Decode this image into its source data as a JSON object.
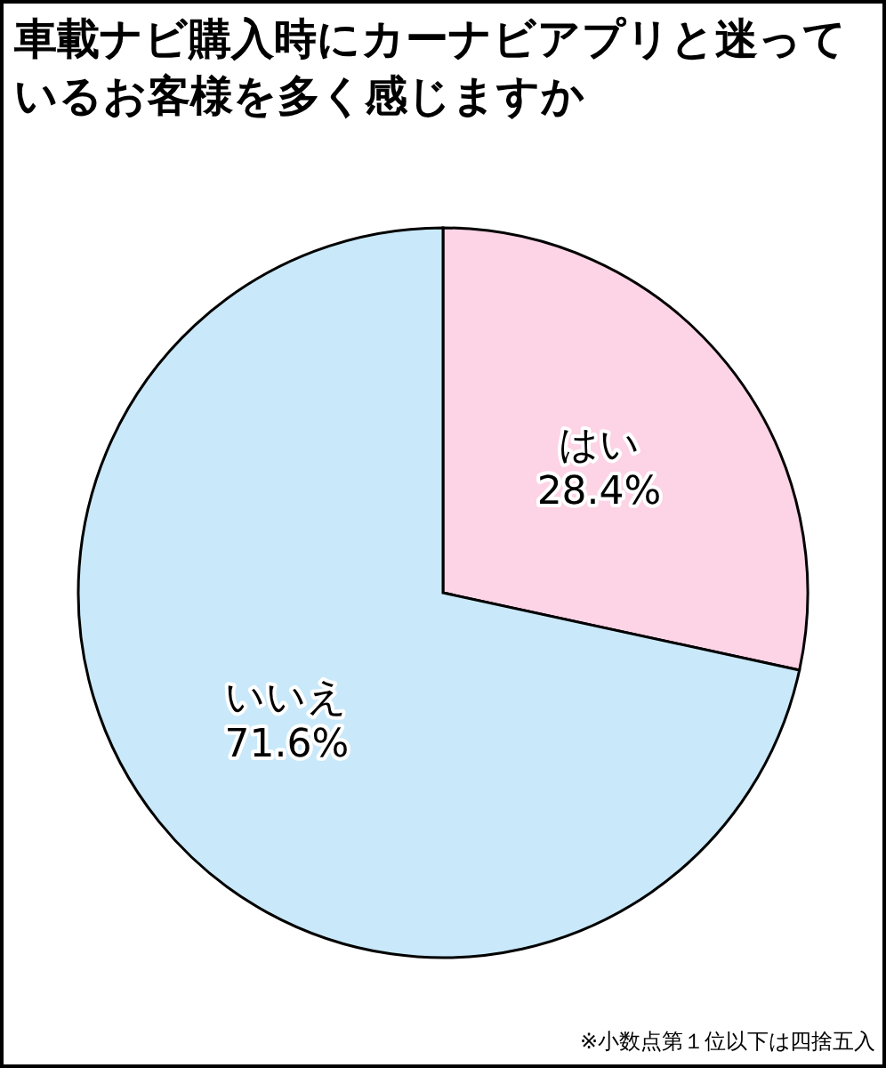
{
  "chart_data": {
    "type": "pie",
    "title": "車載ナビ購入時にカーナビアプリと迷っているお客様を多く感じますか",
    "categories": [
      "はい",
      "いいえ"
    ],
    "values": [
      28.4,
      71.6
    ],
    "value_labels": [
      "28.4%",
      "71.6%"
    ],
    "colors": [
      "#fdd3e6",
      "#c9e9fa"
    ],
    "annotations": [
      "※小数点第１位以下は四捨五入"
    ]
  }
}
